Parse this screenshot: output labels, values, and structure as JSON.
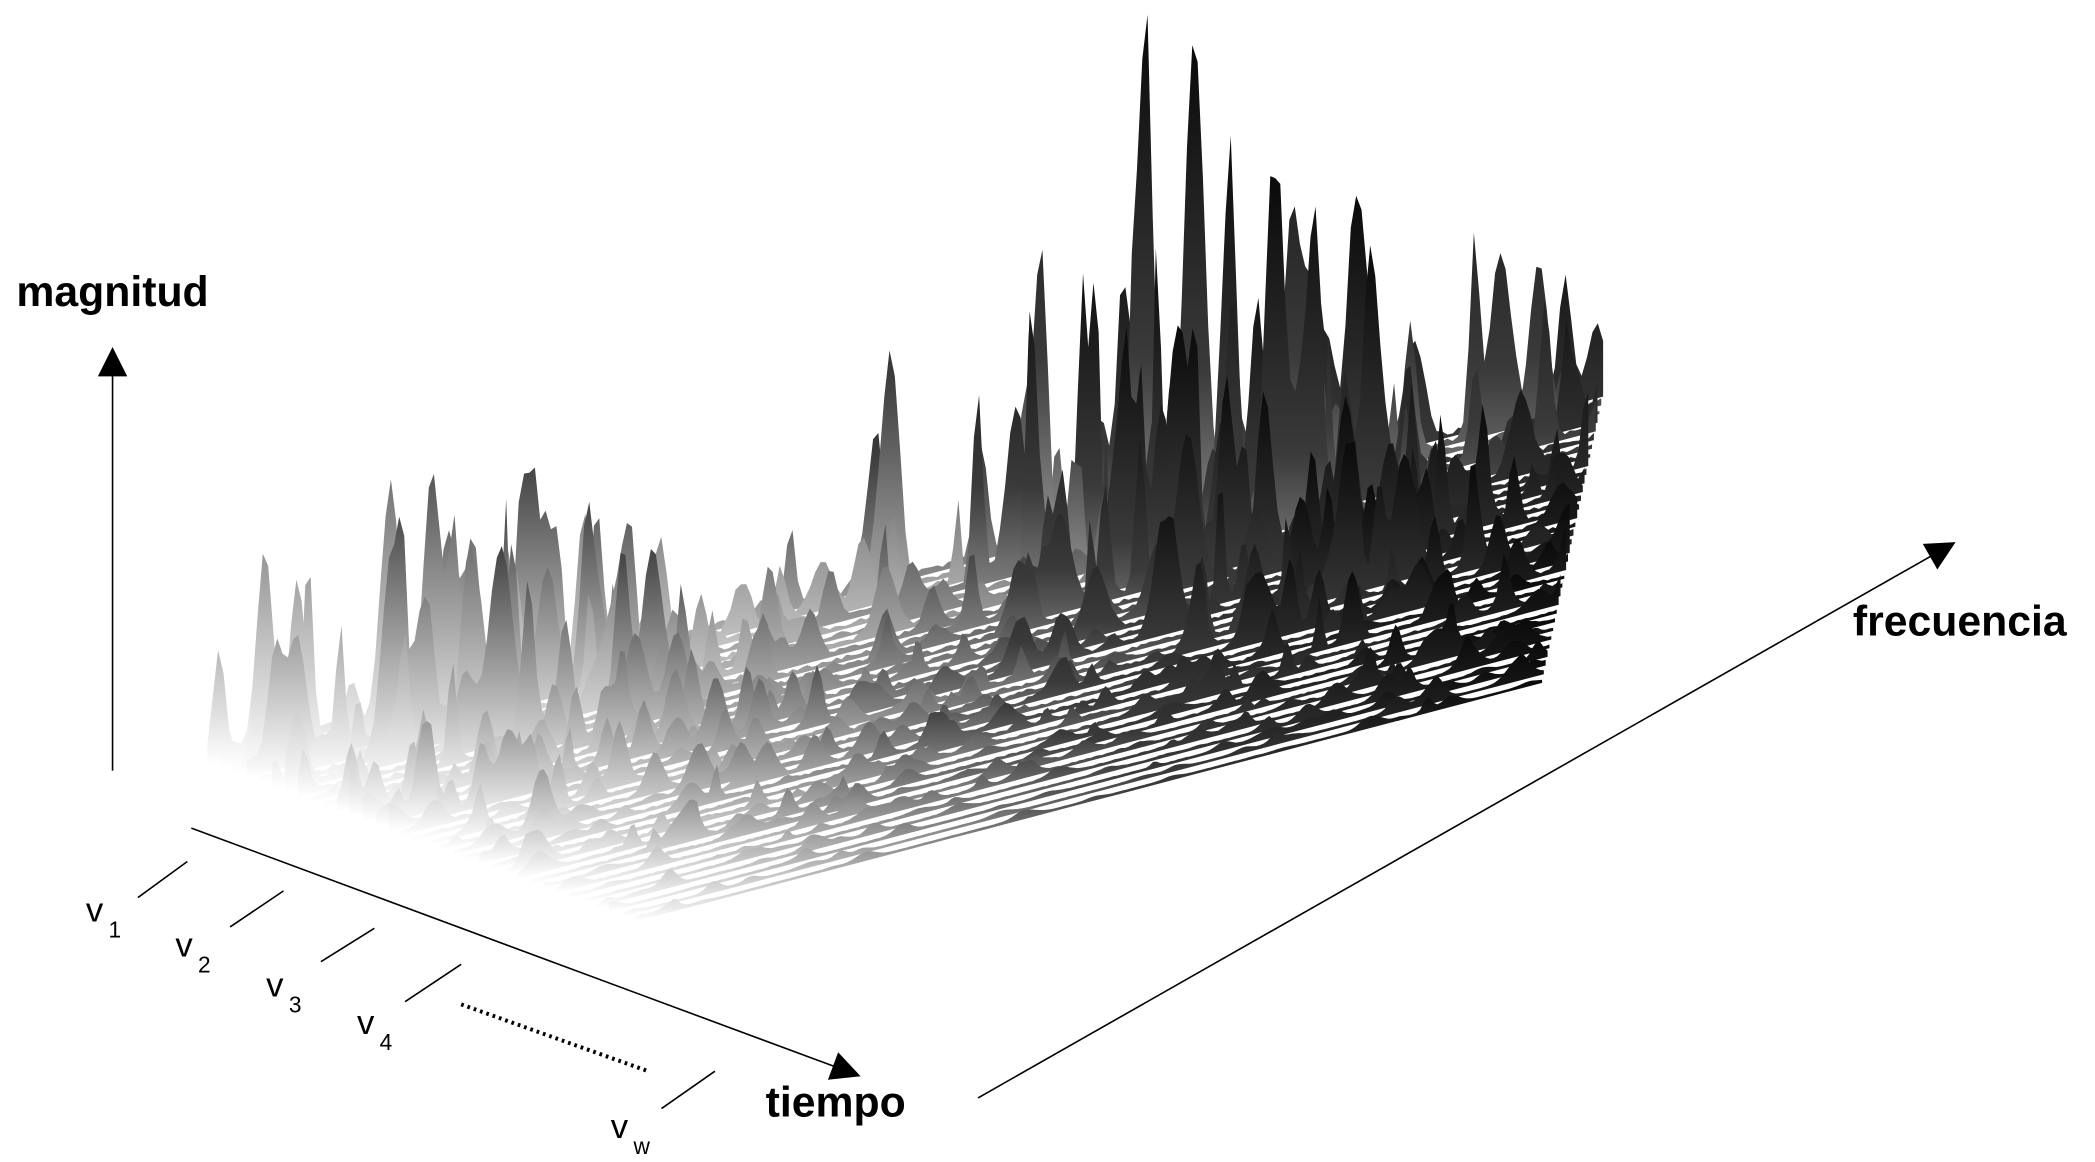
{
  "axes": {
    "magnitude": "magnitud",
    "frequency": "frecuencia",
    "time": "tiempo"
  },
  "frames": [
    {
      "letter": "v",
      "index": "1"
    },
    {
      "letter": "v",
      "index": "2"
    },
    {
      "letter": "v",
      "index": "3"
    },
    {
      "letter": "v",
      "index": "4"
    },
    {
      "letter": "v",
      "index": "w"
    }
  ]
}
